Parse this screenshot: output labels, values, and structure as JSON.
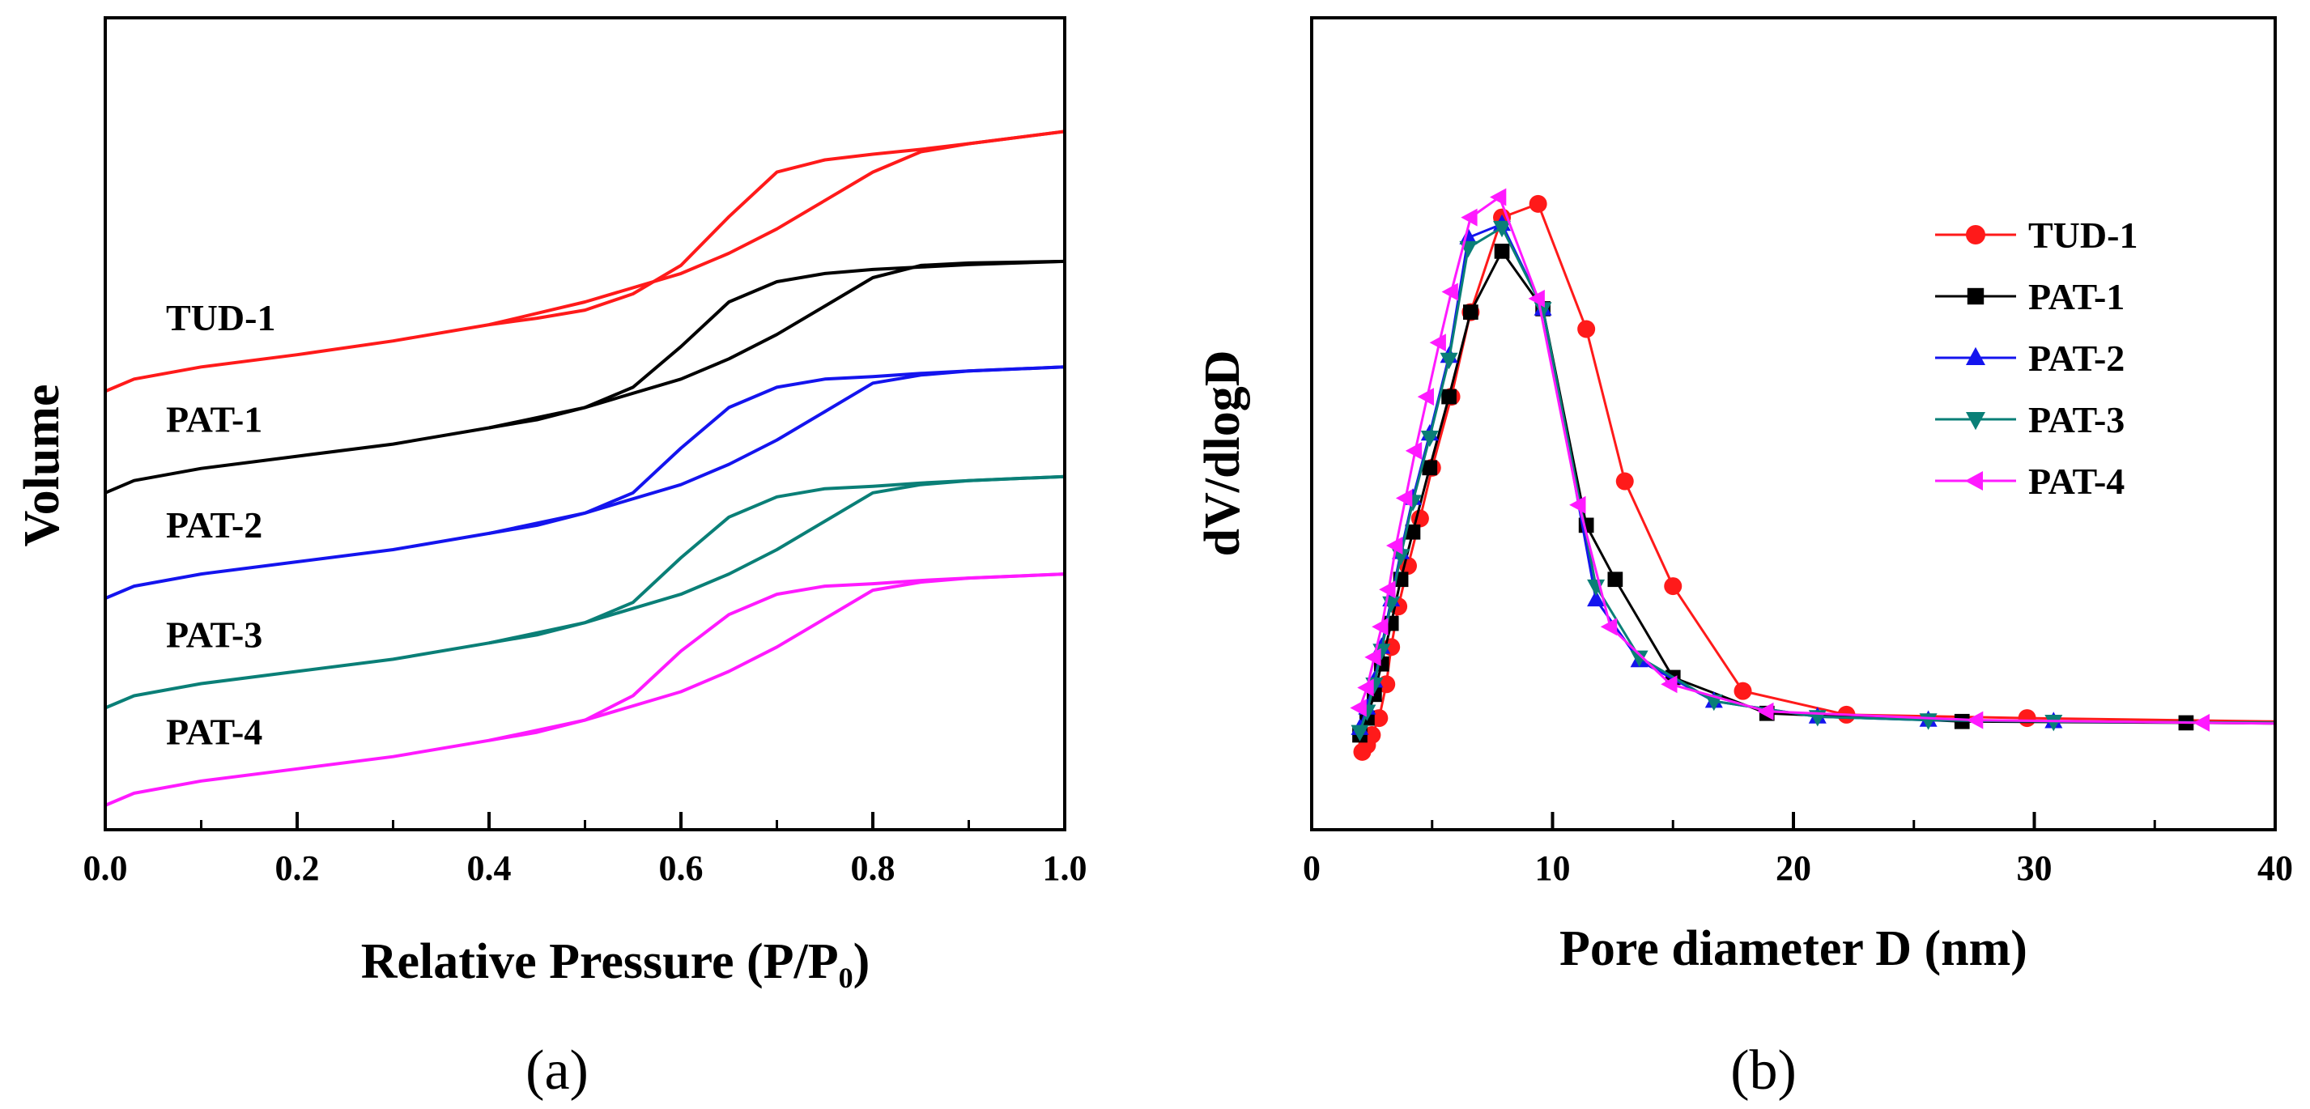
{
  "chart_data": [
    {
      "type": "line",
      "panel_label": "(a)",
      "xlabel": "Relative Pressure (P/P",
      "xlabel_sub": "0",
      "xlabel_end": ")",
      "ylabel": "Volume",
      "xlim": [
        0,
        1
      ],
      "ylim": [
        0,
        10
      ],
      "xticks": [
        0.0,
        0.2,
        0.4,
        0.6,
        0.8,
        1.0
      ],
      "xtick_labels": [
        "0.0",
        "0.2",
        "0.4",
        "0.6",
        "0.8",
        "1.0"
      ],
      "grid": false,
      "series": [
        {
          "name": "TUD-1",
          "color": "#ff1a1a",
          "adsorption": {
            "x": [
              0.0,
              0.03,
              0.1,
              0.2,
              0.3,
              0.4,
              0.5,
              0.6,
              0.65,
              0.7,
              0.75,
              0.8,
              0.85,
              0.9,
              1.0
            ],
            "y": [
              5.4,
              5.55,
              5.7,
              5.85,
              6.02,
              6.22,
              6.5,
              6.85,
              7.1,
              7.4,
              7.75,
              8.1,
              8.35,
              8.45,
              8.6
            ]
          },
          "desorption": {
            "x": [
              1.0,
              0.9,
              0.85,
              0.8,
              0.75,
              0.7,
              0.65,
              0.6,
              0.55,
              0.5,
              0.45,
              0.4
            ],
            "y": [
              8.6,
              8.45,
              8.38,
              8.32,
              8.25,
              8.1,
              7.55,
              6.95,
              6.6,
              6.4,
              6.3,
              6.22
            ]
          }
        },
        {
          "name": "PAT-1",
          "color": "#000000",
          "adsorption": {
            "x": [
              0.0,
              0.03,
              0.1,
              0.2,
              0.3,
              0.4,
              0.5,
              0.6,
              0.65,
              0.7,
              0.75,
              0.8,
              0.85,
              0.9,
              1.0
            ],
            "y": [
              4.15,
              4.3,
              4.45,
              4.6,
              4.75,
              4.95,
              5.2,
              5.55,
              5.8,
              6.1,
              6.45,
              6.8,
              6.95,
              6.98,
              7.0
            ]
          },
          "desorption": {
            "x": [
              1.0,
              0.9,
              0.85,
              0.8,
              0.75,
              0.7,
              0.65,
              0.6,
              0.55,
              0.5,
              0.45,
              0.4
            ],
            "y": [
              7.0,
              6.96,
              6.93,
              6.9,
              6.85,
              6.75,
              6.5,
              5.95,
              5.45,
              5.2,
              5.05,
              4.95
            ]
          }
        },
        {
          "name": "PAT-2",
          "color": "#1414ee",
          "adsorption": {
            "x": [
              0.0,
              0.03,
              0.1,
              0.2,
              0.3,
              0.4,
              0.5,
              0.6,
              0.65,
              0.7,
              0.75,
              0.8,
              0.85,
              0.9,
              1.0
            ],
            "y": [
              2.85,
              3.0,
              3.15,
              3.3,
              3.45,
              3.65,
              3.9,
              4.25,
              4.5,
              4.8,
              5.15,
              5.5,
              5.6,
              5.65,
              5.7
            ]
          },
          "desorption": {
            "x": [
              1.0,
              0.9,
              0.85,
              0.8,
              0.75,
              0.7,
              0.65,
              0.6,
              0.55,
              0.5,
              0.45,
              0.4
            ],
            "y": [
              5.7,
              5.65,
              5.62,
              5.58,
              5.55,
              5.45,
              5.2,
              4.7,
              4.15,
              3.9,
              3.75,
              3.65
            ]
          }
        },
        {
          "name": "PAT-3",
          "color": "#0a7f77",
          "adsorption": {
            "x": [
              0.0,
              0.03,
              0.1,
              0.2,
              0.3,
              0.4,
              0.5,
              0.6,
              0.65,
              0.7,
              0.75,
              0.8,
              0.85,
              0.9,
              1.0
            ],
            "y": [
              1.5,
              1.65,
              1.8,
              1.95,
              2.1,
              2.3,
              2.55,
              2.9,
              3.15,
              3.45,
              3.8,
              4.15,
              4.25,
              4.3,
              4.35
            ]
          },
          "desorption": {
            "x": [
              1.0,
              0.9,
              0.85,
              0.8,
              0.75,
              0.7,
              0.65,
              0.6,
              0.55,
              0.5,
              0.45,
              0.4
            ],
            "y": [
              4.35,
              4.3,
              4.27,
              4.23,
              4.2,
              4.1,
              3.85,
              3.35,
              2.8,
              2.55,
              2.4,
              2.3
            ]
          }
        },
        {
          "name": "PAT-4",
          "color": "#ff1aff",
          "adsorption": {
            "x": [
              0.0,
              0.03,
              0.1,
              0.2,
              0.3,
              0.4,
              0.5,
              0.6,
              0.65,
              0.7,
              0.75,
              0.8,
              0.85,
              0.9,
              1.0
            ],
            "y": [
              0.3,
              0.45,
              0.6,
              0.75,
              0.9,
              1.1,
              1.35,
              1.7,
              1.95,
              2.25,
              2.6,
              2.95,
              3.05,
              3.1,
              3.15
            ]
          },
          "desorption": {
            "x": [
              1.0,
              0.9,
              0.85,
              0.8,
              0.75,
              0.7,
              0.65,
              0.6,
              0.55,
              0.5,
              0.45,
              0.4
            ],
            "y": [
              3.15,
              3.1,
              3.07,
              3.03,
              3.0,
              2.9,
              2.65,
              2.2,
              1.65,
              1.35,
              1.2,
              1.1
            ]
          }
        }
      ]
    },
    {
      "type": "line",
      "panel_label": "(b)",
      "xlabel": "Pore diameter D (nm)",
      "ylabel": "dV/dlogD",
      "xlim": [
        0,
        40
      ],
      "ylim": [
        0,
        1.2
      ],
      "xticks": [
        0,
        10,
        20,
        30,
        40
      ],
      "xtick_labels": [
        "0",
        "10",
        "20",
        "30",
        "40"
      ],
      "grid": false,
      "legend_position": "right",
      "series": [
        {
          "name": "TUD-1",
          "color": "#ff1a1a",
          "marker": "circle",
          "x": [
            2.1,
            2.3,
            2.5,
            2.8,
            3.1,
            3.3,
            3.6,
            4.0,
            4.5,
            5.0,
            5.8,
            6.6,
            7.9,
            9.4,
            11.4,
            13.0,
            15.0,
            17.9,
            22.2,
            29.7,
            40.0
          ],
          "y": [
            0.115,
            0.125,
            0.14,
            0.165,
            0.215,
            0.27,
            0.33,
            0.39,
            0.46,
            0.535,
            0.64,
            0.765,
            0.905,
            0.925,
            0.74,
            0.515,
            0.36,
            0.205,
            0.17,
            0.165,
            0.16
          ]
        },
        {
          "name": "PAT-1",
          "color": "#000000",
          "marker": "square",
          "x": [
            2.0,
            2.3,
            2.6,
            2.9,
            3.3,
            3.7,
            4.2,
            4.9,
            5.7,
            6.6,
            7.9,
            9.6,
            11.4,
            12.6,
            15.0,
            18.9,
            27.0,
            36.3,
            40.0
          ],
          "y": [
            0.14,
            0.165,
            0.2,
            0.245,
            0.305,
            0.37,
            0.44,
            0.535,
            0.64,
            0.765,
            0.855,
            0.77,
            0.45,
            0.37,
            0.225,
            0.172,
            0.16,
            0.158,
            0.157
          ]
        },
        {
          "name": "PAT-2",
          "color": "#1414ee",
          "marker": "triangle-up",
          "x": [
            2.0,
            2.3,
            2.6,
            2.9,
            3.3,
            3.7,
            4.2,
            4.9,
            5.7,
            6.5,
            7.9,
            9.6,
            11.8,
            13.6,
            16.7,
            21.0,
            25.6,
            30.8,
            40.0
          ],
          "y": [
            0.15,
            0.18,
            0.22,
            0.27,
            0.34,
            0.41,
            0.49,
            0.585,
            0.7,
            0.875,
            0.895,
            0.77,
            0.34,
            0.25,
            0.19,
            0.167,
            0.162,
            0.16,
            0.158
          ]
        },
        {
          "name": "PAT-3",
          "color": "#0a7f77",
          "marker": "triangle-down",
          "x": [
            2.0,
            2.3,
            2.6,
            2.9,
            3.3,
            3.7,
            4.2,
            4.9,
            5.7,
            6.5,
            7.9,
            9.6,
            11.8,
            13.6,
            16.7,
            21.0,
            25.6,
            30.8,
            40.0
          ],
          "y": [
            0.145,
            0.175,
            0.215,
            0.265,
            0.335,
            0.405,
            0.485,
            0.58,
            0.695,
            0.86,
            0.89,
            0.77,
            0.36,
            0.255,
            0.19,
            0.167,
            0.162,
            0.16,
            0.158
          ]
        },
        {
          "name": "PAT-4",
          "color": "#ff1aff",
          "marker": "triangle-left",
          "x": [
            2.0,
            2.3,
            2.6,
            2.9,
            3.2,
            3.5,
            3.9,
            4.3,
            4.8,
            5.3,
            5.8,
            6.6,
            7.8,
            9.4,
            11.1,
            12.4,
            14.9,
            18.9,
            27.6,
            37.0,
            40.0
          ],
          "y": [
            0.18,
            0.21,
            0.255,
            0.3,
            0.355,
            0.42,
            0.49,
            0.56,
            0.64,
            0.72,
            0.795,
            0.905,
            0.935,
            0.785,
            0.48,
            0.3,
            0.215,
            0.175,
            0.162,
            0.158,
            0.157
          ]
        }
      ]
    }
  ]
}
